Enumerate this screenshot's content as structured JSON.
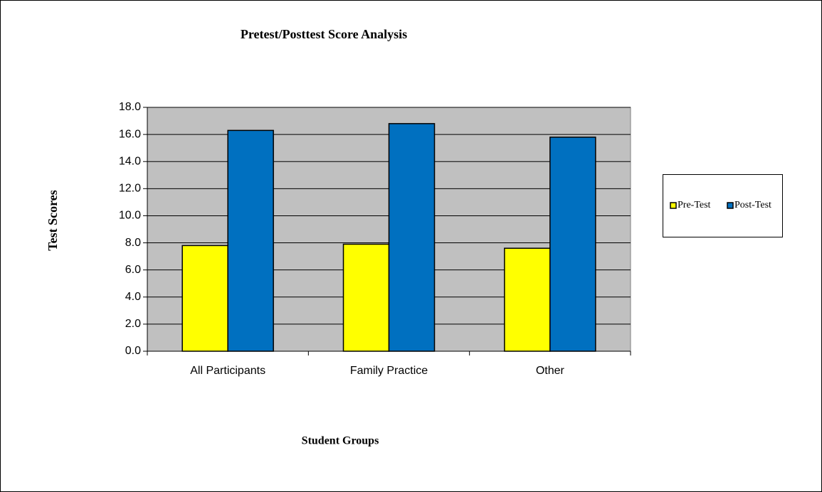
{
  "chart_data": {
    "type": "bar",
    "title": "Pretest/Posttest Score Analysis",
    "x_label": "Student Groups",
    "y_label": "Test Scores",
    "categories": [
      "All Participants",
      "Family Practice",
      "Other"
    ],
    "series": [
      {
        "name": "Pre-Test",
        "color": "#ffff00",
        "values": [
          7.8,
          7.9,
          7.6
        ]
      },
      {
        "name": "Post-Test",
        "color": "#0070c0",
        "values": [
          16.3,
          16.8,
          15.8
        ]
      }
    ],
    "ylim": [
      0,
      18
    ],
    "yticks": [
      {
        "value": 0,
        "label": "0.0"
      },
      {
        "value": 2,
        "label": "2.0"
      },
      {
        "value": 4,
        "label": "4.0"
      },
      {
        "value": 6,
        "label": "6.0"
      },
      {
        "value": 8,
        "label": "8.0"
      },
      {
        "value": 10,
        "label": "10.0"
      },
      {
        "value": 12,
        "label": "12.0"
      },
      {
        "value": 14,
        "label": "14.0"
      },
      {
        "value": 16,
        "label": "16.0"
      },
      {
        "value": 18,
        "label": "18.0"
      }
    ],
    "grid": true,
    "legend": "right",
    "plot_background": "#c0c0c0"
  }
}
